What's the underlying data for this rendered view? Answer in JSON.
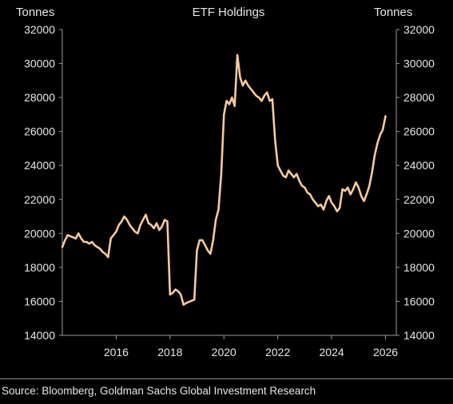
{
  "chart_data": {
    "type": "line",
    "title": "ETF Holdings",
    "ylabel_left": "Tonnes",
    "ylabel_right": "Tonnes",
    "ylim": [
      14000,
      32000
    ],
    "y_ticks": [
      14000,
      16000,
      18000,
      20000,
      22000,
      24000,
      26000,
      28000,
      30000,
      32000
    ],
    "xlim": [
      2014.0,
      2026.4
    ],
    "x_ticks": [
      2016,
      2018,
      2020,
      2022,
      2024,
      2026
    ],
    "grid": false,
    "line_color": "#f6c9a0",
    "series": [
      {
        "x": [
          2014.0,
          2014.1,
          2014.2,
          2014.35,
          2014.5,
          2014.6,
          2014.7,
          2014.8,
          2014.9,
          2015.0,
          2015.1,
          2015.2,
          2015.3,
          2015.4,
          2015.5,
          2015.6,
          2015.7,
          2015.8,
          2015.9,
          2016.0,
          2016.1,
          2016.2,
          2016.3,
          2016.4,
          2016.5,
          2016.6,
          2016.7,
          2016.8,
          2016.9,
          2017.0,
          2017.1,
          2017.2,
          2017.3,
          2017.4,
          2017.5,
          2017.6,
          2017.7,
          2017.8,
          2017.9,
          2018.0,
          2018.1,
          2018.2,
          2018.3,
          2018.35,
          2018.4,
          2018.5,
          2018.6,
          2018.75,
          2018.9,
          2019.0,
          2019.1,
          2019.2,
          2019.3,
          2019.4,
          2019.5,
          2019.6,
          2019.7,
          2019.8,
          2019.9,
          2020.0,
          2020.1,
          2020.2,
          2020.3,
          2020.4,
          2020.5,
          2020.6,
          2020.7,
          2020.8,
          2020.9,
          2021.0,
          2021.05,
          2021.1,
          2021.2,
          2021.3,
          2021.4,
          2021.5,
          2021.6,
          2021.7,
          2021.8,
          2021.9,
          2022.0,
          2022.1,
          2022.2,
          2022.3,
          2022.4,
          2022.5,
          2022.6,
          2022.7,
          2022.8,
          2022.9,
          2023.0,
          2023.1,
          2023.2,
          2023.3,
          2023.4,
          2023.5,
          2023.6,
          2023.7,
          2023.8,
          2023.9,
          2024.0,
          2024.1,
          2024.2,
          2024.3,
          2024.4,
          2024.5,
          2024.6,
          2024.7,
          2024.8,
          2024.9,
          2025.0,
          2025.1,
          2025.2,
          2025.3,
          2025.4,
          2025.5,
          2025.6,
          2025.7,
          2025.8,
          2025.9,
          2026.0
        ],
        "y": [
          19200,
          19600,
          19900,
          19800,
          19700,
          20000,
          19700,
          19500,
          19500,
          19400,
          19500,
          19300,
          19200,
          19100,
          18900,
          18800,
          18600,
          19700,
          19900,
          20100,
          20500,
          20700,
          21000,
          20800,
          20500,
          20300,
          20100,
          20000,
          20500,
          20800,
          21100,
          20600,
          20500,
          20300,
          20600,
          20200,
          20400,
          20800,
          20700,
          16400,
          16500,
          16700,
          16600,
          16500,
          16400,
          15800,
          15900,
          16000,
          16100,
          19000,
          19600,
          19600,
          19300,
          19000,
          18800,
          19600,
          20800,
          21400,
          23500,
          27000,
          27800,
          27600,
          28000,
          27500,
          30500,
          29200,
          28700,
          29000,
          28700,
          28500,
          28400,
          28300,
          28100,
          28000,
          27800,
          28100,
          28300,
          27800,
          27900,
          25500,
          24000,
          23700,
          23400,
          23300,
          23700,
          23500,
          23300,
          23500,
          23100,
          22800,
          22700,
          22400,
          22300,
          22000,
          21800,
          21600,
          21700,
          21400,
          21900,
          22200,
          21800,
          21600,
          21300,
          21500,
          22600,
          22500,
          22700,
          22300,
          22600,
          23000,
          22700,
          22200,
          21900,
          22300,
          22800,
          23600,
          24600,
          25300,
          25800,
          26100,
          26900
        ]
      }
    ]
  },
  "source_text": "Source: Bloomberg, Goldman Sachs Global Investment Research"
}
